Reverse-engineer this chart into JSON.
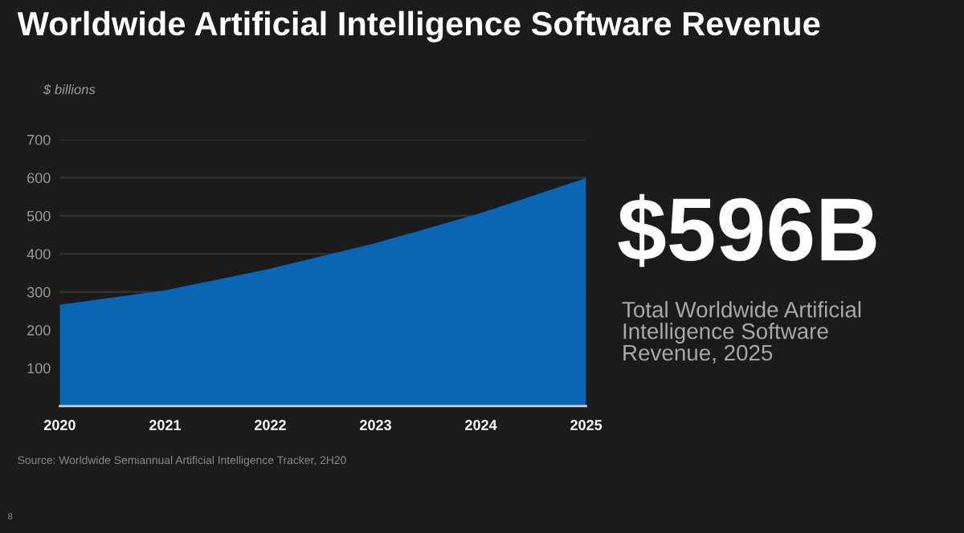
{
  "chart_data": {
    "type": "area",
    "title": "Worldwide Artificial Intelligence Software Revenue",
    "ylabel": "$ billions",
    "categories": [
      "2020",
      "2021",
      "2022",
      "2023",
      "2024",
      "2025"
    ],
    "values": [
      263,
      301,
      358,
      425,
      504,
      596
    ],
    "color": "#0a66b3",
    "ylim": [
      0,
      700
    ],
    "yticks": [
      100,
      200,
      300,
      400,
      500,
      600,
      700
    ],
    "grid": "y",
    "annotations": [
      "$596B",
      "Total Worldwide Artificial Intelligence Software Revenue, 2025",
      "Source: Worldwide Semiannual Artificial Intelligence Tracker, 2H20",
      "8"
    ]
  }
}
